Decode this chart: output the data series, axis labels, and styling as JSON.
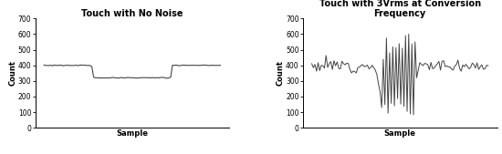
{
  "chart1_title": "Touch with No Noise",
  "chart2_title": "Touch with 3Vrms at Conversion\nFrequency",
  "xlabel": "Sample",
  "ylabel": "Count",
  "ylim": [
    0,
    700
  ],
  "yticks": [
    0,
    100,
    200,
    300,
    400,
    500,
    600,
    700
  ],
  "bg_color": "#ffffff",
  "line_color": "#444444",
  "title_fontsize": 7,
  "axis_fontsize": 6,
  "tick_fontsize": 5.5
}
